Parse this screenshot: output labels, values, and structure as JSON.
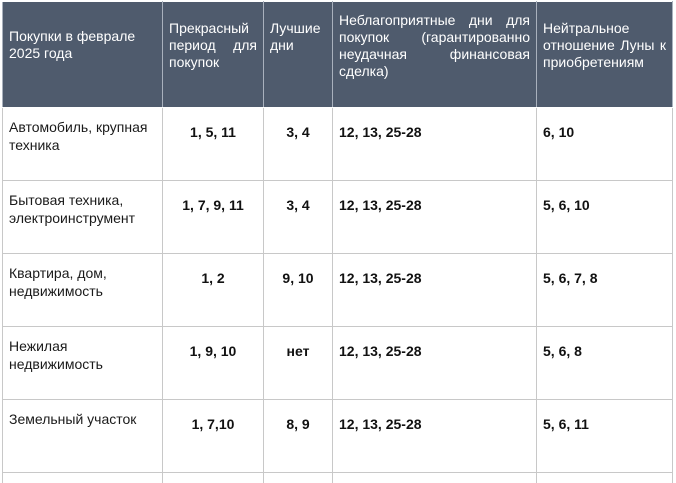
{
  "table": {
    "headers": [
      "Покупки в феврале 2025 года",
      "Прекрасный период для покупок",
      "Лучшие дни",
      "Неблагоприятные дни для покупок (гарантированно неудачная финансовая сделка)",
      "Нейтральное отношение Луны к приобретениям"
    ],
    "rows": [
      {
        "category": "Автомобиль, крупная техника",
        "excellent": "1, 5, 11",
        "best": "3, 4",
        "unfavorable": "12, 13, 25-28",
        "neutral": "6, 10"
      },
      {
        "category": "Бытовая техника, электроинструмент",
        "excellent": "1, 7, 9, 11",
        "best": "3, 4",
        "unfavorable": "12, 13, 25-28",
        "neutral": "5, 6, 10"
      },
      {
        "category": "Квартира, дом, недвижимость",
        "excellent": "1, 2",
        "best": "9, 10",
        "unfavorable": "12, 13, 25-28",
        "neutral": "5, 6, 7, 8"
      },
      {
        "category": "Нежилая недвижимость",
        "excellent": "1, 9, 10",
        "best": "нет",
        "unfavorable": "12, 13, 25-28",
        "neutral": "5, 6, 8"
      },
      {
        "category": "Земельный участок",
        "excellent": "1, 7,10",
        "best": "8, 9",
        "unfavorable": "12, 13, 25-28",
        "neutral": "5, 6, 11"
      }
    ]
  }
}
